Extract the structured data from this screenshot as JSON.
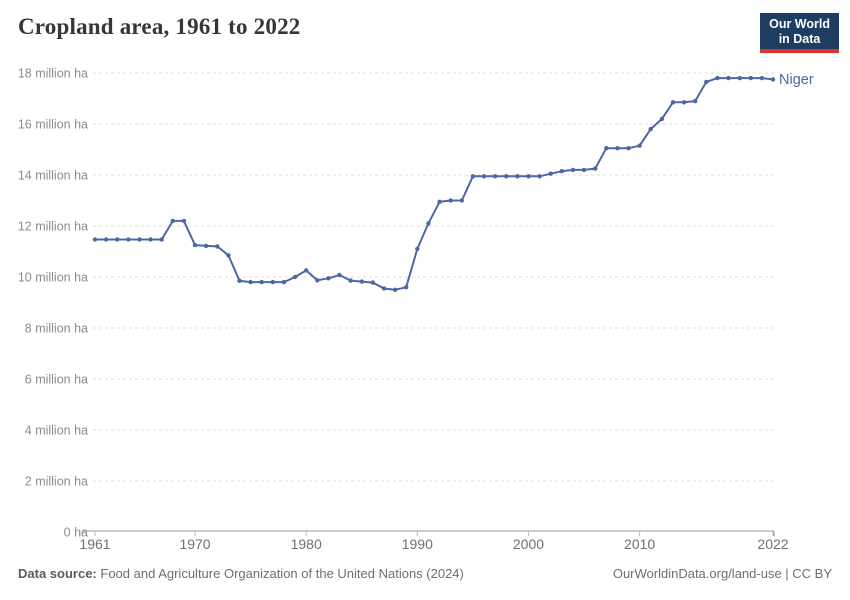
{
  "header": {
    "title": "Cropland area, 1961 to 2022",
    "logo": {
      "line1": "Our World",
      "line2": "in Data"
    }
  },
  "chart_data": {
    "type": "line",
    "title": "Cropland area, 1961 to 2022",
    "unit": "million ha",
    "grid": "dashed-horizontal",
    "ylim": [
      0,
      18
    ],
    "xlim": [
      1961,
      2022
    ],
    "yticks": [
      {
        "v": 18,
        "label": "18 million ha"
      },
      {
        "v": 16,
        "label": "16 million ha"
      },
      {
        "v": 14,
        "label": "14 million ha"
      },
      {
        "v": 12,
        "label": "12 million ha"
      },
      {
        "v": 10,
        "label": "10 million ha"
      },
      {
        "v": 8,
        "label": "8 million ha"
      },
      {
        "v": 6,
        "label": "6 million ha"
      },
      {
        "v": 4,
        "label": "4 million ha"
      },
      {
        "v": 2,
        "label": "2 million ha"
      },
      {
        "v": 0,
        "label": "0 ha"
      }
    ],
    "xticks": [
      "1961",
      "1970",
      "1980",
      "1990",
      "2000",
      "2010",
      "2022"
    ],
    "x": [
      1961,
      1962,
      1963,
      1964,
      1965,
      1966,
      1967,
      1968,
      1969,
      1970,
      1971,
      1972,
      1973,
      1974,
      1975,
      1976,
      1977,
      1978,
      1979,
      1980,
      1981,
      1982,
      1983,
      1984,
      1985,
      1986,
      1987,
      1988,
      1989,
      1990,
      1991,
      1992,
      1993,
      1994,
      1995,
      1996,
      1997,
      1998,
      1999,
      2000,
      2001,
      2002,
      2003,
      2004,
      2005,
      2006,
      2007,
      2008,
      2009,
      2010,
      2011,
      2012,
      2013,
      2014,
      2015,
      2016,
      2017,
      2018,
      2019,
      2020,
      2021,
      2022
    ],
    "series": [
      {
        "name": "Niger",
        "color": "#4b68a2",
        "values": [
          11.47,
          11.47,
          11.47,
          11.47,
          11.47,
          11.47,
          11.47,
          12.2,
          12.2,
          11.25,
          11.22,
          11.2,
          10.85,
          9.85,
          9.8,
          9.8,
          9.8,
          9.8,
          10.0,
          10.26,
          9.87,
          9.95,
          10.08,
          9.86,
          9.82,
          9.78,
          9.55,
          9.5,
          9.6,
          11.1,
          12.1,
          12.95,
          13.0,
          13.0,
          13.95,
          13.95,
          13.95,
          13.95,
          13.95,
          13.95,
          13.95,
          14.05,
          14.15,
          14.2,
          14.2,
          14.25,
          15.05,
          15.05,
          15.05,
          15.15,
          15.8,
          16.2,
          16.85,
          16.85,
          16.9,
          17.65,
          17.8,
          17.8,
          17.8,
          17.8,
          17.8,
          17.75
        ]
      }
    ],
    "colors": {
      "line": "#4b68a2",
      "grid": "#dcdcdc",
      "axis": "#999999",
      "ytick_label": "#8c8c8c",
      "xtick_label": "#707070"
    },
    "legend_position": "end-of-line"
  },
  "footer": {
    "datasource_label": "Data source:",
    "datasource": "Food and Agriculture Organization of the United Nations (2024)",
    "attribution": "OurWorldinData.org/land-use | CC BY"
  }
}
